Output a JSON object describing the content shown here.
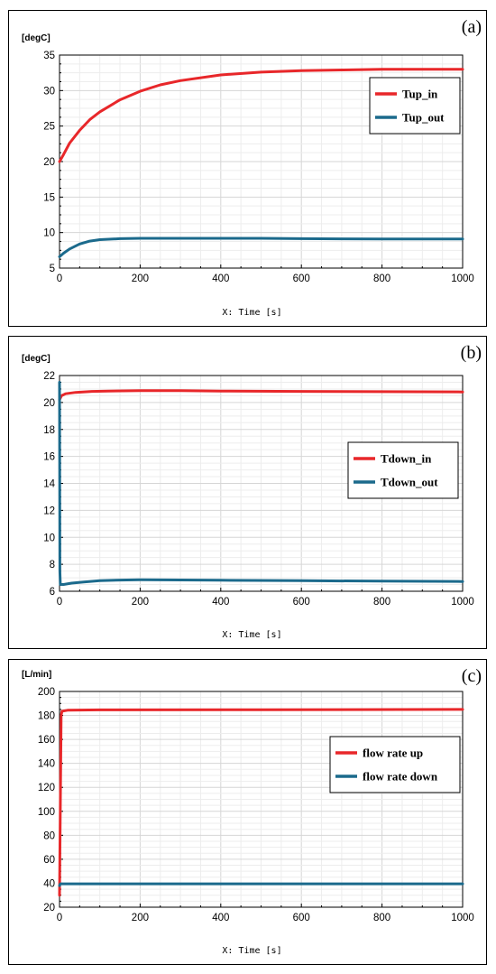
{
  "chart_data": [
    {
      "type": "line",
      "panel_label": "(a)",
      "ylabel": "[degC]",
      "xlabel": "X: Time [s]",
      "xlim": [
        0,
        1000
      ],
      "ylim": [
        5,
        35
      ],
      "xticks": [
        0,
        200,
        400,
        600,
        800,
        1000
      ],
      "yticks": [
        5,
        10,
        15,
        20,
        25,
        30,
        35
      ],
      "grid": true,
      "legend": "top-right",
      "series": [
        {
          "name": "Tup_in",
          "color": "#e8272a",
          "x": [
            0,
            10,
            25,
            50,
            75,
            100,
            150,
            200,
            250,
            300,
            400,
            500,
            600,
            700,
            800,
            900,
            1000
          ],
          "y": [
            20,
            21.0,
            22.6,
            24.4,
            25.9,
            27.0,
            28.7,
            29.9,
            30.8,
            31.4,
            32.2,
            32.6,
            32.8,
            32.9,
            33.0,
            33.0,
            33.0
          ]
        },
        {
          "name": "Tup_out",
          "color": "#1b6a8c",
          "x": [
            0,
            10,
            25,
            50,
            75,
            100,
            150,
            200,
            300,
            400,
            500,
            600,
            700,
            800,
            900,
            1000
          ],
          "y": [
            6.6,
            7.1,
            7.7,
            8.4,
            8.8,
            9.0,
            9.15,
            9.2,
            9.2,
            9.2,
            9.2,
            9.15,
            9.12,
            9.1,
            9.1,
            9.1
          ]
        }
      ]
    },
    {
      "type": "line",
      "panel_label": "(b)",
      "ylabel": "[degC]",
      "xlabel": "X: Time [s]",
      "xlim": [
        0,
        1000
      ],
      "ylim": [
        6,
        22
      ],
      "xticks": [
        0,
        200,
        400,
        600,
        800,
        1000
      ],
      "yticks": [
        6,
        8,
        10,
        12,
        14,
        16,
        18,
        20,
        22
      ],
      "grid": true,
      "legend": "middle-right",
      "series": [
        {
          "name": "Tdown_in",
          "color": "#e8272a",
          "x": [
            0,
            5,
            15,
            40,
            80,
            120,
            200,
            300,
            400,
            600,
            800,
            1000
          ],
          "y": [
            20.2,
            20.5,
            20.65,
            20.75,
            20.82,
            20.85,
            20.88,
            20.88,
            20.85,
            20.82,
            20.8,
            20.78
          ]
        },
        {
          "name": "Tdown_out",
          "color": "#1b6a8c",
          "x": [
            0,
            1,
            2,
            10,
            30,
            60,
            100,
            150,
            200,
            300,
            400,
            600,
            800,
            1000
          ],
          "y": [
            21.5,
            7.5,
            6.5,
            6.5,
            6.6,
            6.68,
            6.78,
            6.83,
            6.85,
            6.84,
            6.82,
            6.78,
            6.75,
            6.72
          ]
        }
      ]
    },
    {
      "type": "line",
      "panel_label": "(c)",
      "ylabel": "[L/min]",
      "xlabel": "X: Time [s]",
      "xlim": [
        0,
        1000
      ],
      "ylim": [
        20,
        200
      ],
      "xticks": [
        0,
        200,
        400,
        600,
        800,
        1000
      ],
      "yticks": [
        20,
        40,
        60,
        80,
        100,
        120,
        140,
        160,
        180,
        200
      ],
      "grid": true,
      "legend": "middle-right",
      "series": [
        {
          "name": "flow rate up",
          "color": "#e8272a",
          "x": [
            0,
            4,
            6,
            20,
            100,
            500,
            1000
          ],
          "y": [
            30,
            180,
            183.5,
            184.3,
            184.6,
            184.8,
            185
          ]
        },
        {
          "name": "flow rate down",
          "color": "#1b6a8c",
          "x": [
            0,
            2,
            5,
            50,
            500,
            1000
          ],
          "y": [
            38,
            39.5,
            39.5,
            39.5,
            39.5,
            39.5
          ]
        }
      ]
    }
  ]
}
